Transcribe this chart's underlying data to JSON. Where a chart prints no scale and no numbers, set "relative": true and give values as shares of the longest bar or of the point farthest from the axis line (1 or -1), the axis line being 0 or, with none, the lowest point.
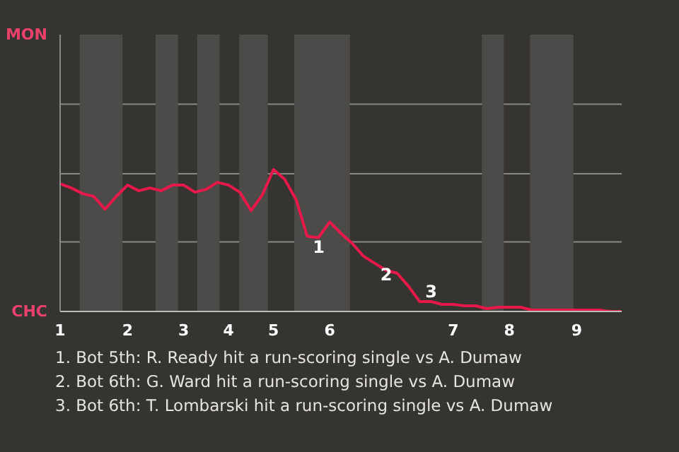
{
  "chart_data": {
    "type": "line",
    "color": "#e8194a",
    "relative": true,
    "categories": [
      "1",
      null,
      null,
      null,
      null,
      null,
      "2",
      null,
      null,
      null,
      null,
      "3",
      null,
      null,
      null,
      "4",
      null,
      null,
      null,
      "5",
      null,
      null,
      null,
      null,
      "6",
      null,
      null,
      null,
      null,
      null,
      null,
      null,
      null,
      null,
      null,
      "7",
      null,
      null,
      null,
      null,
      "8",
      null,
      null,
      null,
      null,
      null,
      "9",
      null,
      null,
      null,
      null
    ],
    "values": [
      0.9,
      0.87,
      0.83,
      0.81,
      0.72,
      0.81,
      0.89,
      0.85,
      0.87,
      0.85,
      0.89,
      0.89,
      0.84,
      0.86,
      0.91,
      0.89,
      0.84,
      0.71,
      0.82,
      1,
      0.93,
      0.79,
      0.53,
      0.52,
      0.63,
      0.55,
      0.48,
      0.39,
      0.34,
      0.29,
      0.27,
      0.18,
      0.07,
      0.07,
      0.05,
      0.05,
      0.04,
      0.04,
      0.02,
      0.03,
      0.03,
      0.03,
      0.01,
      0.01,
      0.01,
      0.01,
      0.01,
      0.01,
      0.01,
      0.0,
      0.0
    ],
    "marker": "none",
    "line_style": "solid",
    "ref_lines": [
      {
        "axis": "y",
        "value": 0.49,
        "color": "#8a8886"
      },
      {
        "axis": "y",
        "value": 0.97,
        "color": "#8a8886"
      },
      {
        "axis": "y",
        "value": 1.46,
        "color": "#8a8886"
      }
    ],
    "annotations": [
      "MON",
      "CHC",
      "1",
      "2",
      "3",
      "1. Bot 5th: R. Ready hit a run-scoring single vs A. Dumaw",
      "2. Bot 6th: G. Ward hit a run-scoring single vs A. Dumaw",
      "3. Bot 6th: T. Lombarski hit a run-scoring single vs A. Dumaw"
    ]
  }
}
